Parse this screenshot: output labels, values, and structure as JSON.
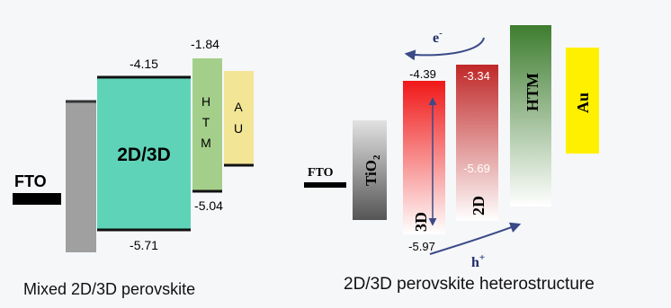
{
  "left_panel": {
    "caption": "Mixed 2D/3D perovskite",
    "fto_label": "FTO",
    "absorber_label": "2D/3D",
    "htm_letters": [
      "H",
      "T",
      "M"
    ],
    "au_letters": [
      "A",
      "U"
    ],
    "levels": {
      "absorber_top": "-4.15",
      "absorber_bottom": "-5.71",
      "htm_top": "-1.84",
      "htm_bottom": "-5.04"
    },
    "colors": {
      "absorber": "#5fd3b8",
      "htm": "#a4cf8a",
      "au": "#f2e596",
      "fto": "#a0a0a0"
    }
  },
  "right_panel": {
    "caption": "2D/3D perovskite heterostructure",
    "fto_label": "FTO",
    "tio2_label": "TiO",
    "tio2_subscript": "2",
    "perovskite_3d_label": "3D",
    "perovskite_2d_label": "2D",
    "htm_label": "HTM",
    "au_label": "Au",
    "electron_label": "e",
    "electron_sup": "-",
    "hole_label": "h",
    "hole_sup": "+",
    "levels": {
      "3d_top": "-4.39",
      "3d_bottom": "-5.97",
      "2d_top": "-3.34",
      "2d_bottom": "-5.69"
    },
    "colors": {
      "perovskite_3d": "#f01818",
      "perovskite_2d": "#c02828",
      "htm": "#3e7d2f",
      "au": "#fff000",
      "tio2": "#555555",
      "arrow": "#3a4a86"
    }
  }
}
